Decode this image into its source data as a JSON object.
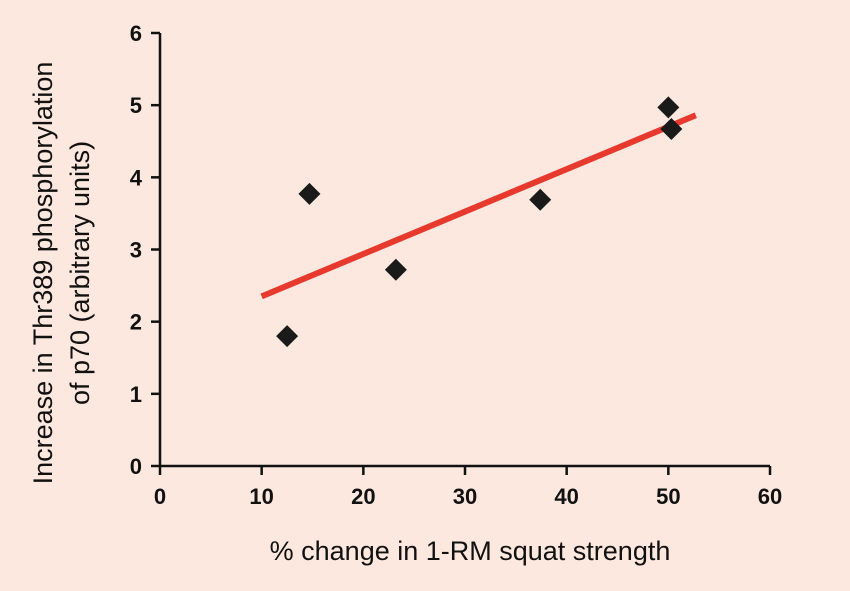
{
  "chart_data": {
    "type": "scatter",
    "title": "",
    "xlabel": "% change in 1-RM squat strength",
    "ylabel_lines": [
      "Increase in Thr389 phosphorylation",
      "of p70 (arbitrary units)"
    ],
    "xlim": [
      0,
      60
    ],
    "ylim": [
      0,
      6
    ],
    "xticks": [
      0,
      10,
      20,
      30,
      40,
      50,
      60
    ],
    "yticks": [
      0,
      1,
      2,
      3,
      4,
      5,
      6
    ],
    "grid": false,
    "legend": false,
    "points": [
      {
        "x": 12.5,
        "y": 1.8
      },
      {
        "x": 14.7,
        "y": 3.77
      },
      {
        "x": 23.2,
        "y": 2.72
      },
      {
        "x": 37.4,
        "y": 3.69
      },
      {
        "x": 50.0,
        "y": 4.97
      },
      {
        "x": 50.3,
        "y": 4.67
      }
    ],
    "trendline": {
      "x": [
        10,
        52.7
      ],
      "y": [
        2.35,
        4.86
      ]
    },
    "colors": {
      "background": "#fce8df",
      "marker": "#1a1a1a",
      "trendline": "#e8392e",
      "axis": "#111111"
    }
  }
}
